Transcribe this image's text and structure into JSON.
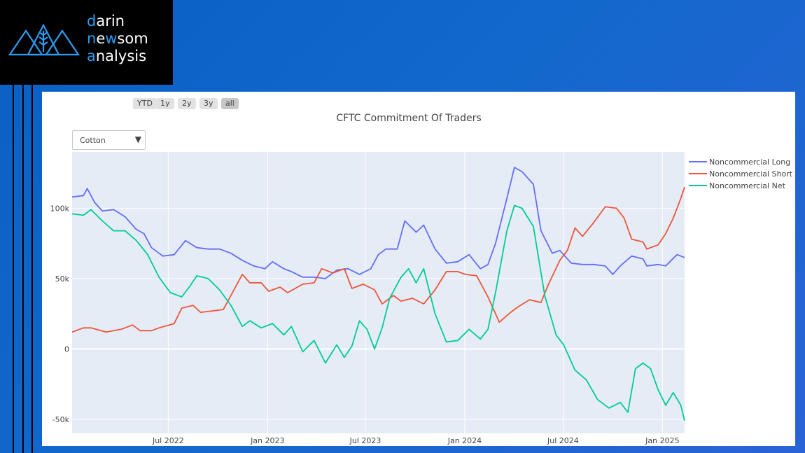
{
  "brand": {
    "line1_initial": "d",
    "line1_rest": "arin",
    "line2_initial": "n",
    "line2_mid": "e",
    "line2_w": "w",
    "line2_rest": "som",
    "line3_initial": "a",
    "line3_rest": "nalysis"
  },
  "range_selector": {
    "buttons": [
      "YTD",
      "1y",
      "2y",
      "3y",
      "all"
    ],
    "active": "all"
  },
  "dropdown": {
    "value": "Cotton"
  },
  "colors": {
    "long": "#636efa",
    "short": "#ef553b",
    "net": "#00cc96",
    "plot_bg": "#e5ecf6"
  },
  "chart_data": {
    "type": "line",
    "title": "CFTC Commitment Of Traders",
    "xlabel": "",
    "ylabel": "",
    "x_range": [
      "2022-01-04",
      "2025-02-11"
    ],
    "ylim": [
      -60000,
      140000
    ],
    "y_ticks": [
      {
        "value": 100000,
        "label": "100k"
      },
      {
        "value": 50000,
        "label": "50k"
      },
      {
        "value": 0,
        "label": "0"
      },
      {
        "value": -50000,
        "label": "-50k"
      }
    ],
    "x_ticks": [
      {
        "date": "2022-07-01",
        "label": "Jul 2022"
      },
      {
        "date": "2023-01-01",
        "label": "Jan 2023"
      },
      {
        "date": "2023-07-01",
        "label": "Jul 2023"
      },
      {
        "date": "2024-01-01",
        "label": "Jan 2024"
      },
      {
        "date": "2024-07-01",
        "label": "Jul 2024"
      },
      {
        "date": "2025-01-01",
        "label": "Jan 2025"
      }
    ],
    "legend_position": "right",
    "series": [
      {
        "name": "Noncommercial Long",
        "color": "#636efa",
        "points": [
          [
            "2022-01-04",
            108000
          ],
          [
            "2022-01-25",
            109000
          ],
          [
            "2022-02-01",
            114000
          ],
          [
            "2022-02-15",
            104000
          ],
          [
            "2022-03-01",
            98000
          ],
          [
            "2022-03-22",
            99000
          ],
          [
            "2022-04-12",
            94000
          ],
          [
            "2022-05-03",
            85000
          ],
          [
            "2022-05-17",
            82000
          ],
          [
            "2022-05-31",
            72000
          ],
          [
            "2022-06-21",
            66000
          ],
          [
            "2022-07-12",
            67000
          ],
          [
            "2022-08-02",
            77000
          ],
          [
            "2022-08-23",
            72000
          ],
          [
            "2022-09-13",
            71000
          ],
          [
            "2022-10-04",
            71000
          ],
          [
            "2022-10-25",
            68000
          ],
          [
            "2022-11-15",
            63000
          ],
          [
            "2022-12-06",
            59000
          ],
          [
            "2022-12-27",
            57000
          ],
          [
            "2023-01-10",
            62000
          ],
          [
            "2023-01-31",
            57000
          ],
          [
            "2023-02-14",
            55000
          ],
          [
            "2023-03-07",
            51000
          ],
          [
            "2023-03-28",
            51000
          ],
          [
            "2023-04-18",
            50000
          ],
          [
            "2023-05-09",
            56000
          ],
          [
            "2023-05-30",
            57000
          ],
          [
            "2023-06-20",
            53000
          ],
          [
            "2023-07-11",
            57000
          ],
          [
            "2023-07-25",
            67000
          ],
          [
            "2023-08-08",
            71000
          ],
          [
            "2023-08-29",
            71000
          ],
          [
            "2023-09-12",
            91000
          ],
          [
            "2023-10-03",
            83000
          ],
          [
            "2023-10-17",
            88000
          ],
          [
            "2023-11-07",
            71000
          ],
          [
            "2023-11-28",
            61000
          ],
          [
            "2023-12-19",
            62000
          ],
          [
            "2024-01-09",
            67000
          ],
          [
            "2024-01-30",
            57000
          ],
          [
            "2024-02-13",
            60000
          ],
          [
            "2024-02-27",
            75000
          ],
          [
            "2024-03-19",
            107000
          ],
          [
            "2024-04-02",
            129000
          ],
          [
            "2024-04-16",
            126000
          ],
          [
            "2024-05-07",
            117000
          ],
          [
            "2024-05-21",
            84000
          ],
          [
            "2024-06-11",
            68000
          ],
          [
            "2024-06-25",
            70000
          ],
          [
            "2024-07-16",
            61000
          ],
          [
            "2024-08-06",
            60000
          ],
          [
            "2024-08-27",
            60000
          ],
          [
            "2024-09-17",
            59000
          ],
          [
            "2024-10-01",
            53000
          ],
          [
            "2024-10-15",
            59000
          ],
          [
            "2024-11-05",
            66000
          ],
          [
            "2024-11-26",
            64000
          ],
          [
            "2024-12-03",
            59000
          ],
          [
            "2024-12-24",
            60000
          ],
          [
            "2025-01-07",
            59000
          ],
          [
            "2025-01-28",
            67000
          ],
          [
            "2025-02-11",
            65000
          ]
        ]
      },
      {
        "name": "Noncommercial Short",
        "color": "#ef553b",
        "points": [
          [
            "2022-01-04",
            12000
          ],
          [
            "2022-01-25",
            15000
          ],
          [
            "2022-02-08",
            15000
          ],
          [
            "2022-03-08",
            12000
          ],
          [
            "2022-04-05",
            14000
          ],
          [
            "2022-04-26",
            17000
          ],
          [
            "2022-05-10",
            13000
          ],
          [
            "2022-05-31",
            13000
          ],
          [
            "2022-06-14",
            15000
          ],
          [
            "2022-07-12",
            18000
          ],
          [
            "2022-07-26",
            29000
          ],
          [
            "2022-08-16",
            31000
          ],
          [
            "2022-08-30",
            26000
          ],
          [
            "2022-09-20",
            27000
          ],
          [
            "2022-10-11",
            28000
          ],
          [
            "2022-10-25",
            38000
          ],
          [
            "2022-11-15",
            53000
          ],
          [
            "2022-11-29",
            47000
          ],
          [
            "2022-12-20",
            47000
          ],
          [
            "2023-01-03",
            41000
          ],
          [
            "2023-01-24",
            44000
          ],
          [
            "2023-02-07",
            40000
          ],
          [
            "2023-03-07",
            46000
          ],
          [
            "2023-03-28",
            47000
          ],
          [
            "2023-04-11",
            57000
          ],
          [
            "2023-05-02",
            54000
          ],
          [
            "2023-05-23",
            57000
          ],
          [
            "2023-06-06",
            43000
          ],
          [
            "2023-06-27",
            46000
          ],
          [
            "2023-07-18",
            42000
          ],
          [
            "2023-08-01",
            32000
          ],
          [
            "2023-08-22",
            38000
          ],
          [
            "2023-09-05",
            34000
          ],
          [
            "2023-09-26",
            36000
          ],
          [
            "2023-10-17",
            32000
          ],
          [
            "2023-11-07",
            42000
          ],
          [
            "2023-11-28",
            55000
          ],
          [
            "2023-12-19",
            55000
          ],
          [
            "2024-01-02",
            53000
          ],
          [
            "2024-01-23",
            52000
          ],
          [
            "2024-02-13",
            37000
          ],
          [
            "2024-03-05",
            19000
          ],
          [
            "2024-03-26",
            26000
          ],
          [
            "2024-04-09",
            30000
          ],
          [
            "2024-04-30",
            35000
          ],
          [
            "2024-05-21",
            33000
          ],
          [
            "2024-06-04",
            46000
          ],
          [
            "2024-06-25",
            63000
          ],
          [
            "2024-07-09",
            70000
          ],
          [
            "2024-07-23",
            86000
          ],
          [
            "2024-08-06",
            80000
          ],
          [
            "2024-08-27",
            90000
          ],
          [
            "2024-09-17",
            101000
          ],
          [
            "2024-10-08",
            100000
          ],
          [
            "2024-10-22",
            93000
          ],
          [
            "2024-11-05",
            78000
          ],
          [
            "2024-11-26",
            76000
          ],
          [
            "2024-12-03",
            71000
          ],
          [
            "2024-12-24",
            74000
          ],
          [
            "2025-01-07",
            82000
          ],
          [
            "2025-01-21",
            93000
          ],
          [
            "2025-02-04",
            107000
          ],
          [
            "2025-02-11",
            115000
          ]
        ]
      },
      {
        "name": "Noncommercial Net",
        "color": "#00cc96",
        "points": [
          [
            "2022-01-04",
            96000
          ],
          [
            "2022-01-25",
            95000
          ],
          [
            "2022-02-08",
            99000
          ],
          [
            "2022-03-01",
            91000
          ],
          [
            "2022-03-22",
            84000
          ],
          [
            "2022-04-12",
            84000
          ],
          [
            "2022-05-03",
            77000
          ],
          [
            "2022-05-24",
            67000
          ],
          [
            "2022-06-14",
            51000
          ],
          [
            "2022-07-05",
            40000
          ],
          [
            "2022-07-26",
            37000
          ],
          [
            "2022-08-09",
            44000
          ],
          [
            "2022-08-23",
            52000
          ],
          [
            "2022-09-13",
            50000
          ],
          [
            "2022-10-04",
            42000
          ],
          [
            "2022-10-25",
            31000
          ],
          [
            "2022-11-15",
            16000
          ],
          [
            "2022-11-29",
            20000
          ],
          [
            "2022-12-20",
            15000
          ],
          [
            "2023-01-10",
            18000
          ],
          [
            "2023-01-31",
            10000
          ],
          [
            "2023-02-14",
            16000
          ],
          [
            "2023-03-07",
            -2000
          ],
          [
            "2023-03-28",
            6000
          ],
          [
            "2023-04-18",
            -10000
          ],
          [
            "2023-05-09",
            3000
          ],
          [
            "2023-05-23",
            -6000
          ],
          [
            "2023-06-06",
            2000
          ],
          [
            "2023-06-20",
            20000
          ],
          [
            "2023-07-04",
            14000
          ],
          [
            "2023-07-18",
            0
          ],
          [
            "2023-08-01",
            15000
          ],
          [
            "2023-08-15",
            36000
          ],
          [
            "2023-09-05",
            51000
          ],
          [
            "2023-09-19",
            57000
          ],
          [
            "2023-10-03",
            47000
          ],
          [
            "2023-10-17",
            57000
          ],
          [
            "2023-11-07",
            25000
          ],
          [
            "2023-11-28",
            5000
          ],
          [
            "2023-12-19",
            6000
          ],
          [
            "2024-01-09",
            14000
          ],
          [
            "2024-01-30",
            7000
          ],
          [
            "2024-02-13",
            14000
          ],
          [
            "2024-02-27",
            40000
          ],
          [
            "2024-03-19",
            84000
          ],
          [
            "2024-04-02",
            102000
          ],
          [
            "2024-04-16",
            100000
          ],
          [
            "2024-05-07",
            87000
          ],
          [
            "2024-05-28",
            38000
          ],
          [
            "2024-06-18",
            10000
          ],
          [
            "2024-07-02",
            3000
          ],
          [
            "2024-07-23",
            -15000
          ],
          [
            "2024-08-13",
            -22000
          ],
          [
            "2024-09-03",
            -36000
          ],
          [
            "2024-09-24",
            -42000
          ],
          [
            "2024-10-15",
            -38000
          ],
          [
            "2024-10-29",
            -45000
          ],
          [
            "2024-11-12",
            -14000
          ],
          [
            "2024-11-26",
            -10000
          ],
          [
            "2024-12-10",
            -14000
          ],
          [
            "2024-12-24",
            -29000
          ],
          [
            "2025-01-07",
            -40000
          ],
          [
            "2025-01-21",
            -31000
          ],
          [
            "2025-02-04",
            -40000
          ],
          [
            "2025-02-11",
            -51000
          ]
        ]
      }
    ]
  }
}
